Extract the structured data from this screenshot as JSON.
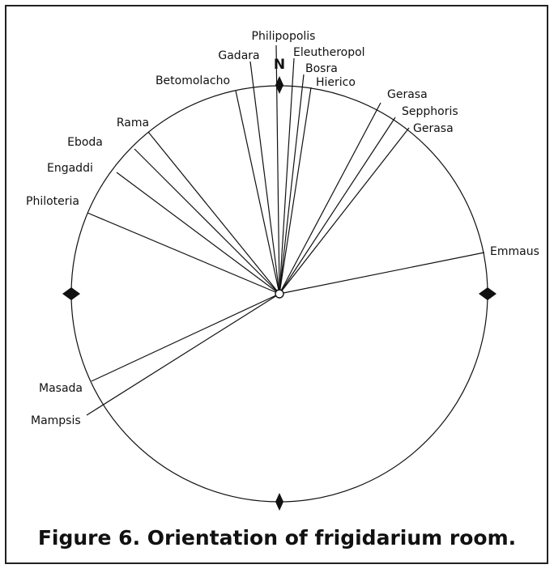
{
  "figure": {
    "north_label": "N",
    "labels": [
      "Philipopolis",
      "Gadara",
      "Eleutheropol",
      "Bosra",
      "Betomolacho",
      "Hierico",
      "Gerasa",
      "Sepphoris",
      "Gerasa",
      "Rama",
      "Eboda",
      "Engaddi",
      "Philoteria",
      "Emmaus",
      "Masada",
      "Mampsis"
    ],
    "caption": "Figure 6. Orientation of frigidarium room."
  }
}
